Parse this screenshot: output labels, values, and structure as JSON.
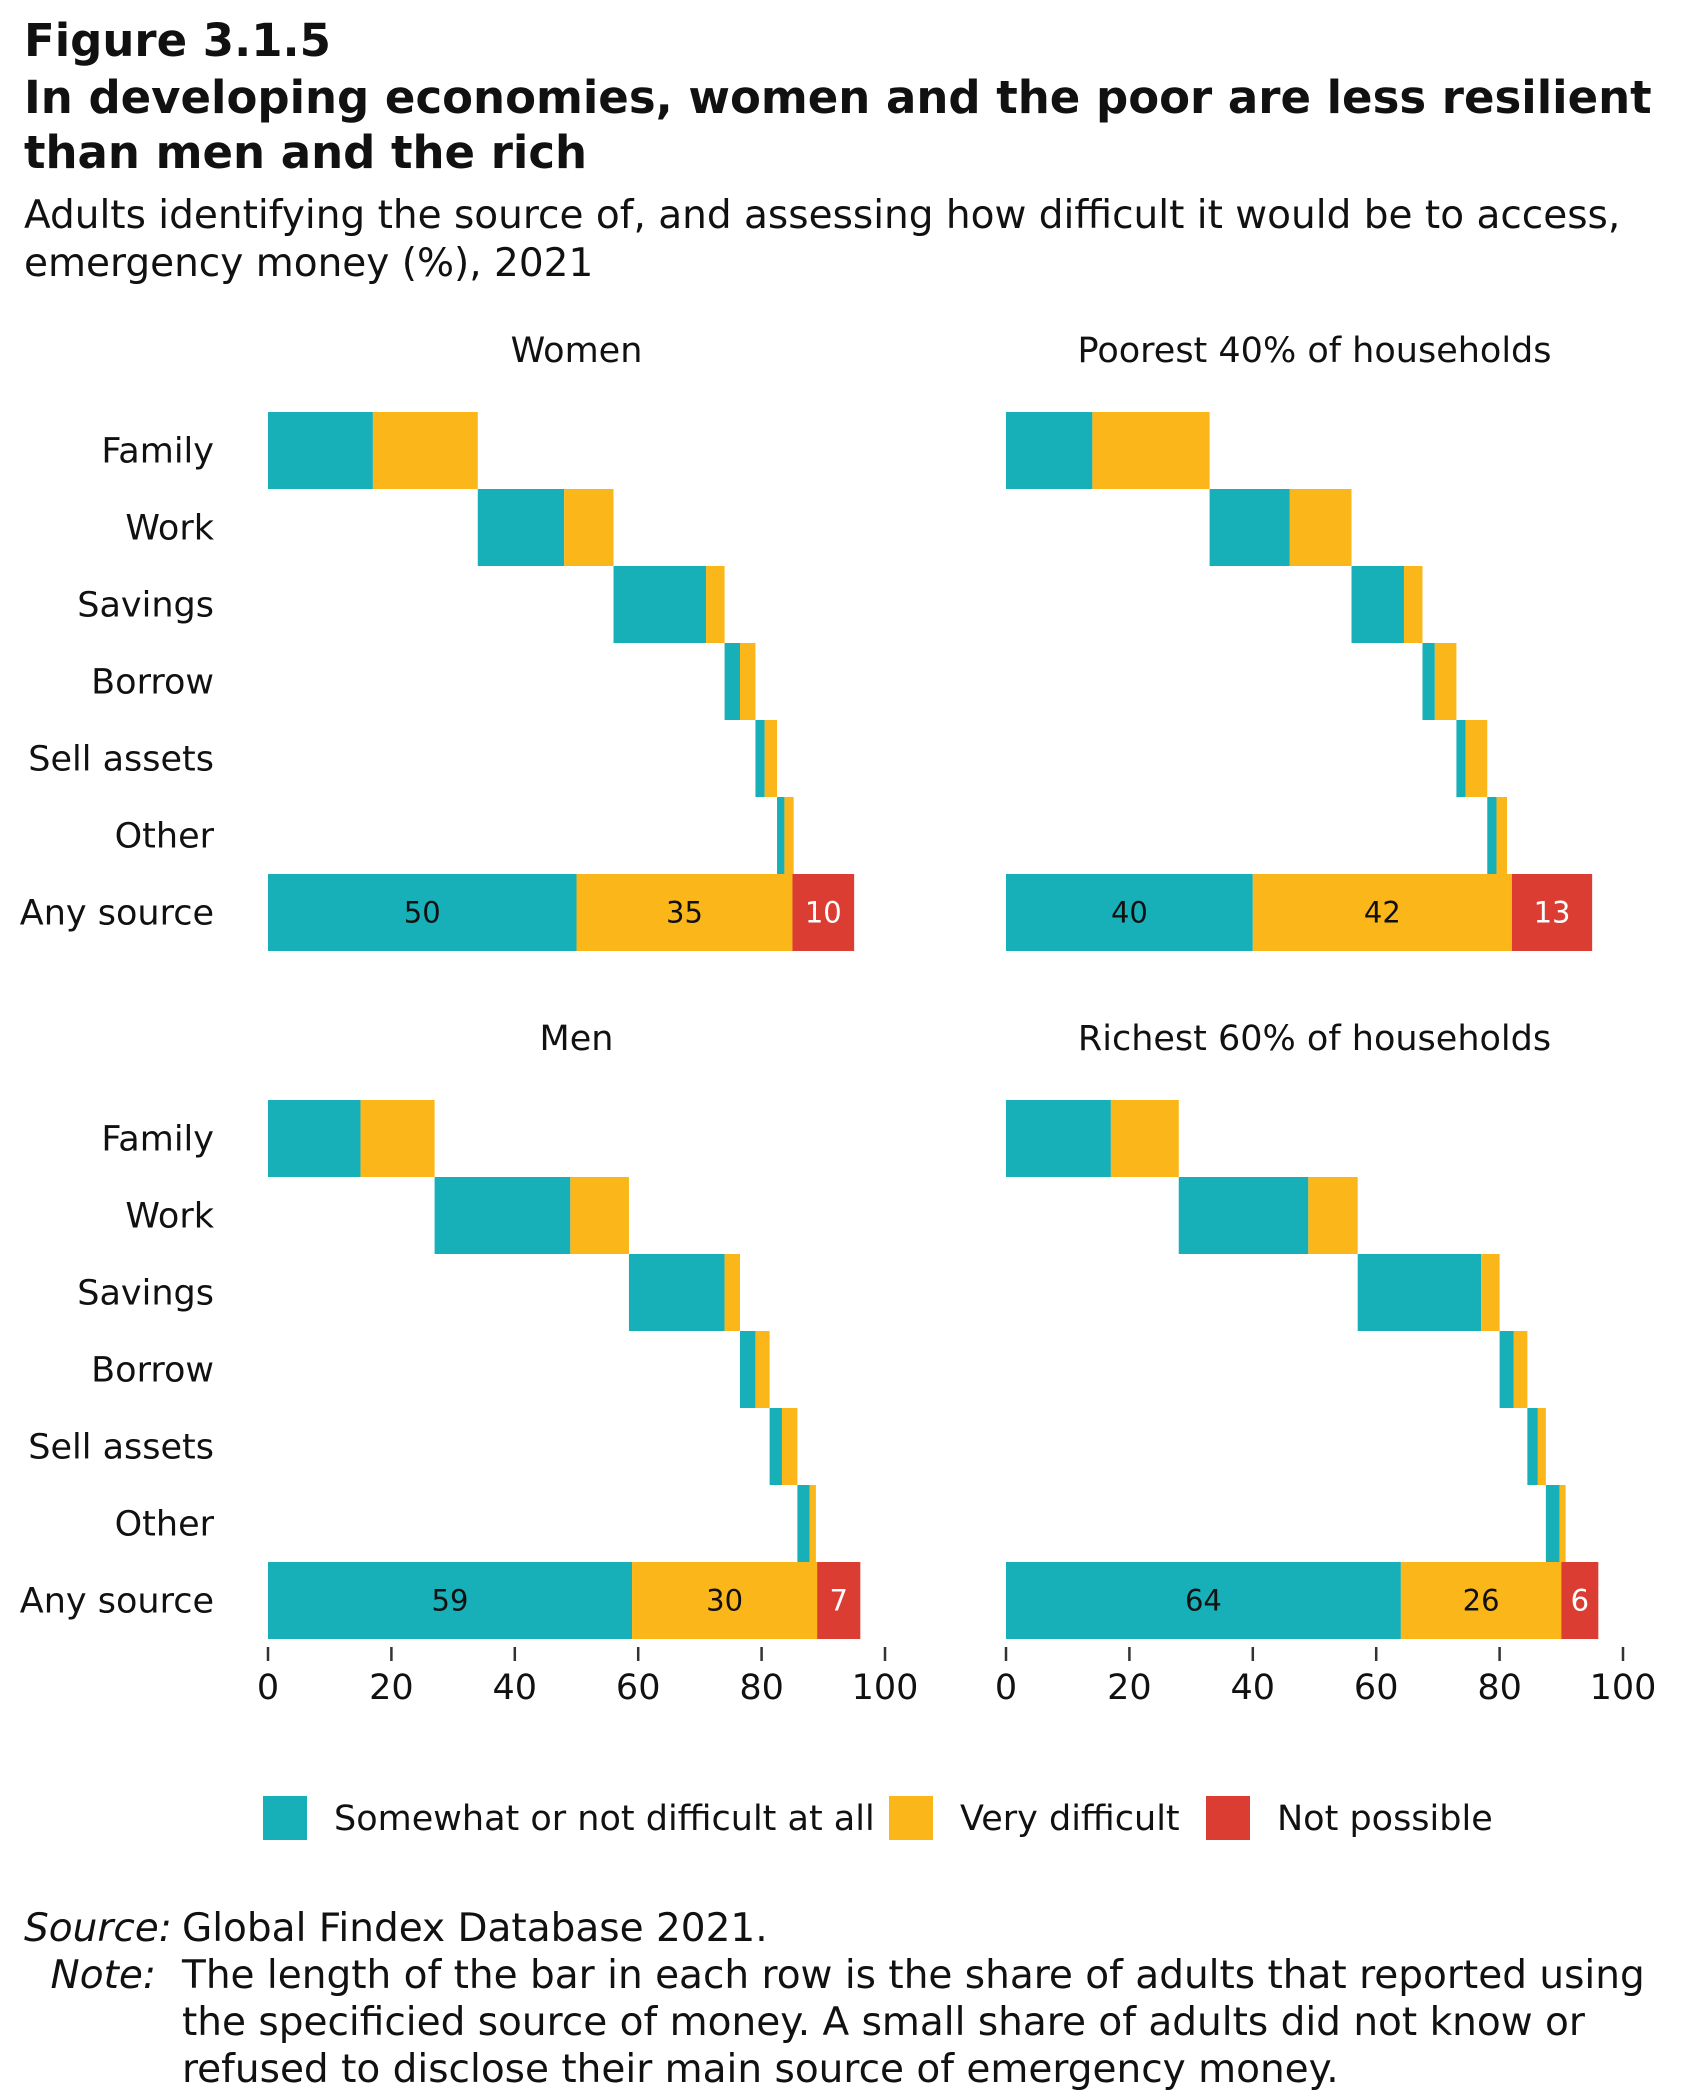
{
  "figure_label": "Figure 3.1.5",
  "title": "In developing economies, women and the poor are less resilient than men and the rich",
  "subtitle": "Adults identifying the source of, and assessing how difficult it would be to access, emergency money (%), 2021",
  "colors": {
    "somewhat": "#17AFB8",
    "very": "#FBB61A",
    "not": "#DC3D33"
  },
  "chart_data": {
    "type": "bar",
    "orientation": "horizontal",
    "stacked": true,
    "layout": "waterfall",
    "categories": [
      "Family",
      "Work",
      "Savings",
      "Borrow",
      "Sell assets",
      "Other",
      "Any source"
    ],
    "xlim": [
      0,
      100
    ],
    "xticks": [
      0,
      20,
      40,
      60,
      80,
      100
    ],
    "legend": {
      "position": "bottom",
      "entries": [
        {
          "key": "somewhat",
          "label": "Somewhat or not difficult at all"
        },
        {
          "key": "very",
          "label": "Very difficult"
        },
        {
          "key": "not",
          "label": "Not possible"
        }
      ]
    },
    "panels": [
      {
        "title": "Women",
        "rows": [
          {
            "category": "Family",
            "somewhat": 17,
            "very": 17,
            "not": 0
          },
          {
            "category": "Work",
            "somewhat": 14,
            "very": 8,
            "not": 0
          },
          {
            "category": "Savings",
            "somewhat": 15,
            "very": 3,
            "not": 0
          },
          {
            "category": "Borrow",
            "somewhat": 2.5,
            "very": 2.5,
            "not": 0
          },
          {
            "category": "Sell assets",
            "somewhat": 1.5,
            "very": 2,
            "not": 0
          },
          {
            "category": "Other",
            "somewhat": 1.2,
            "very": 1.5,
            "not": 0
          },
          {
            "category": "Any source",
            "somewhat": 50,
            "very": 35,
            "not": 10
          }
        ],
        "labels": [
          "50",
          "35",
          "10"
        ]
      },
      {
        "title": "Poorest 40% of households",
        "rows": [
          {
            "category": "Family",
            "somewhat": 14,
            "very": 19,
            "not": 0
          },
          {
            "category": "Work",
            "somewhat": 13,
            "very": 10,
            "not": 0
          },
          {
            "category": "Savings",
            "somewhat": 8.5,
            "very": 3,
            "not": 0
          },
          {
            "category": "Borrow",
            "somewhat": 2,
            "very": 3.5,
            "not": 0
          },
          {
            "category": "Sell assets",
            "somewhat": 1.5,
            "very": 3.5,
            "not": 0
          },
          {
            "category": "Other",
            "somewhat": 1.5,
            "very": 1.7,
            "not": 0
          },
          {
            "category": "Any source",
            "somewhat": 40,
            "very": 42,
            "not": 13
          }
        ],
        "labels": [
          "40",
          "42",
          "13"
        ]
      },
      {
        "title": "Men",
        "rows": [
          {
            "category": "Family",
            "somewhat": 15,
            "very": 12,
            "not": 0
          },
          {
            "category": "Work",
            "somewhat": 22,
            "very": 9.5,
            "not": 0
          },
          {
            "category": "Savings",
            "somewhat": 15.5,
            "very": 2.5,
            "not": 0
          },
          {
            "category": "Borrow",
            "somewhat": 2.5,
            "very": 2.3,
            "not": 0
          },
          {
            "category": "Sell assets",
            "somewhat": 2,
            "very": 2.5,
            "not": 0
          },
          {
            "category": "Other",
            "somewhat": 2,
            "very": 1,
            "not": 0
          },
          {
            "category": "Any source",
            "somewhat": 59,
            "very": 30,
            "not": 7
          }
        ],
        "labels": [
          "59",
          "30",
          "7"
        ]
      },
      {
        "title": "Richest 60% of households",
        "rows": [
          {
            "category": "Family",
            "somewhat": 17,
            "very": 11,
            "not": 0
          },
          {
            "category": "Work",
            "somewhat": 21,
            "very": 8,
            "not": 0
          },
          {
            "category": "Savings",
            "somewhat": 20,
            "very": 3,
            "not": 0
          },
          {
            "category": "Borrow",
            "somewhat": 2.3,
            "very": 2.2,
            "not": 0
          },
          {
            "category": "Sell assets",
            "somewhat": 1.7,
            "very": 1.3,
            "not": 0
          },
          {
            "category": "Other",
            "somewhat": 2.2,
            "very": 1,
            "not": 0
          },
          {
            "category": "Any source",
            "somewhat": 64,
            "very": 26,
            "not": 6
          }
        ],
        "labels": [
          "64",
          "26",
          "6"
        ]
      }
    ]
  },
  "footnotes": {
    "source_label": "Source:",
    "source_text": "Global Findex Database 2021.",
    "note_label": "Note:",
    "note_text": "The length of the bar in each row is the share of adults that reported using the specificied source of money. A small share of adults did not know or refused to disclose their main source of emergency money."
  }
}
